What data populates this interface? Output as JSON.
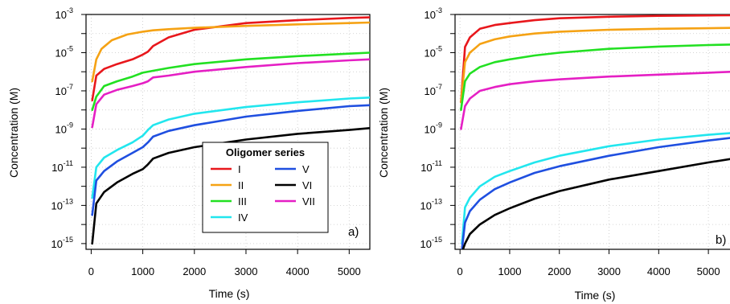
{
  "chart_data": [
    {
      "type": "line",
      "panel_label": "a)",
      "xlabel": "Time (s)",
      "ylabel": "Concentration (M)",
      "xlim": [
        -100,
        5400
      ],
      "ylim_log10": [
        -15.3,
        -3
      ],
      "yscale": "log",
      "xticks": [
        "0",
        "1000",
        "2000",
        "3000",
        "4000",
        "5000"
      ],
      "xtick_values": [
        0,
        1000,
        2000,
        3000,
        4000,
        5000
      ],
      "yticks_exp": [
        "-3",
        "-5",
        "-7",
        "-9",
        "-11",
        "-13",
        "-15"
      ],
      "ytick_values_log10": [
        -3,
        -5,
        -7,
        -9,
        -11,
        -13,
        -15
      ],
      "grid": true,
      "legend": {
        "title": "Oligomer series",
        "placement": "lower-right",
        "entries": [
          {
            "label": "I",
            "color": "#e8171c"
          },
          {
            "label": "V",
            "color": "#1f4fe0"
          },
          {
            "label": "II",
            "color": "#f5a214"
          },
          {
            "label": "VI",
            "color": "#000000"
          },
          {
            "label": "III",
            "color": "#22e022"
          },
          {
            "label": "VII",
            "color": "#e51fc4"
          },
          {
            "label": "IV",
            "color": "#22e6ee"
          }
        ]
      },
      "series": [
        {
          "name": "I",
          "color": "#e8171c",
          "x": [
            20,
            100,
            250,
            500,
            800,
            1000,
            1100,
            1200,
            1500,
            2000,
            3000,
            4000,
            5000,
            5400
          ],
          "log10_y": [
            -7.5,
            -6.2,
            -5.85,
            -5.6,
            -5.35,
            -5.1,
            -4.95,
            -4.65,
            -4.2,
            -3.8,
            -3.45,
            -3.3,
            -3.18,
            -3.15
          ]
        },
        {
          "name": "II",
          "color": "#f5a214",
          "x": [
            20,
            100,
            200,
            400,
            700,
            1000,
            1200,
            1500,
            2000,
            3000,
            4000,
            5000,
            5400
          ],
          "log10_y": [
            -6.5,
            -5.35,
            -4.8,
            -4.35,
            -4.05,
            -3.9,
            -3.83,
            -3.77,
            -3.7,
            -3.6,
            -3.52,
            -3.45,
            -3.42
          ]
        },
        {
          "name": "III",
          "color": "#22e022",
          "x": [
            20,
            100,
            250,
            500,
            800,
            1000,
            1200,
            1500,
            2000,
            3000,
            4000,
            5000,
            5400
          ],
          "log10_y": [
            -8.0,
            -7.3,
            -6.75,
            -6.5,
            -6.25,
            -6.05,
            -5.95,
            -5.8,
            -5.6,
            -5.35,
            -5.18,
            -5.05,
            -5.0
          ]
        },
        {
          "name": "IV",
          "color": "#22e6ee",
          "x": [
            20,
            100,
            250,
            500,
            800,
            1000,
            1100,
            1200,
            1500,
            2000,
            3000,
            4000,
            5000,
            5400
          ],
          "log10_y": [
            -12.6,
            -11.0,
            -10.5,
            -10.1,
            -9.7,
            -9.35,
            -9.05,
            -8.8,
            -8.5,
            -8.2,
            -7.85,
            -7.6,
            -7.4,
            -7.35
          ]
        },
        {
          "name": "V",
          "color": "#1f4fe0",
          "x": [
            20,
            100,
            250,
            500,
            800,
            1000,
            1100,
            1200,
            1500,
            2000,
            3000,
            4000,
            5000,
            5400
          ],
          "log10_y": [
            -13.5,
            -11.7,
            -11.2,
            -10.7,
            -10.25,
            -9.95,
            -9.7,
            -9.4,
            -9.1,
            -8.8,
            -8.35,
            -8.05,
            -7.8,
            -7.75
          ]
        },
        {
          "name": "VI",
          "color": "#000000",
          "x": [
            20,
            100,
            250,
            500,
            800,
            1000,
            1100,
            1200,
            1500,
            2000,
            3000,
            4000,
            5000,
            5400
          ],
          "log10_y": [
            -15.0,
            -12.9,
            -12.3,
            -11.8,
            -11.35,
            -11.1,
            -10.85,
            -10.55,
            -10.25,
            -9.95,
            -9.55,
            -9.25,
            -9.05,
            -8.95
          ]
        },
        {
          "name": "VII",
          "color": "#e51fc4",
          "x": [
            20,
            100,
            250,
            500,
            800,
            1000,
            1100,
            1200,
            1500,
            2000,
            3000,
            4000,
            5000,
            5400
          ],
          "log10_y": [
            -8.9,
            -7.7,
            -7.2,
            -6.95,
            -6.75,
            -6.6,
            -6.5,
            -6.3,
            -6.2,
            -6.0,
            -5.75,
            -5.55,
            -5.4,
            -5.35
          ]
        }
      ]
    },
    {
      "type": "line",
      "panel_label": "b)",
      "xlabel": "Time (s)",
      "ylabel": "Concentration (M)",
      "xlim": [
        -100,
        5500
      ],
      "ylim_log10": [
        -15.3,
        -3
      ],
      "yscale": "log",
      "xticks": [
        "0",
        "1000",
        "2000",
        "3000",
        "4000",
        "5000"
      ],
      "xtick_values": [
        0,
        1000,
        2000,
        3000,
        4000,
        5000
      ],
      "yticks_exp": [
        "-3",
        "-5",
        "-7",
        "-9",
        "-11",
        "-13",
        "-15"
      ],
      "ytick_values_log10": [
        -3,
        -5,
        -7,
        -9,
        -11,
        -13,
        -15
      ],
      "grid": true,
      "series": [
        {
          "name": "I",
          "color": "#e8171c",
          "x": [
            20,
            100,
            200,
            400,
            700,
            1000,
            1500,
            2000,
            3000,
            4000,
            5000,
            5500
          ],
          "log10_y": [
            -7.6,
            -4.7,
            -4.2,
            -3.75,
            -3.55,
            -3.45,
            -3.3,
            -3.2,
            -3.12,
            -3.07,
            -3.05,
            -3.04
          ]
        },
        {
          "name": "II",
          "color": "#f5a214",
          "x": [
            20,
            100,
            200,
            400,
            700,
            1000,
            1500,
            2000,
            3000,
            4000,
            5000,
            5500
          ],
          "log10_y": [
            -7.6,
            -5.5,
            -5.0,
            -4.55,
            -4.3,
            -4.15,
            -4.0,
            -3.9,
            -3.8,
            -3.75,
            -3.72,
            -3.7
          ]
        },
        {
          "name": "III",
          "color": "#22e022",
          "x": [
            20,
            100,
            200,
            400,
            700,
            1000,
            1500,
            2000,
            3000,
            4000,
            5000,
            5500
          ],
          "log10_y": [
            -8.0,
            -6.5,
            -6.1,
            -5.75,
            -5.5,
            -5.35,
            -5.15,
            -5.0,
            -4.8,
            -4.68,
            -4.6,
            -4.57
          ]
        },
        {
          "name": "IV",
          "color": "#22e6ee",
          "x": [
            40,
            100,
            200,
            400,
            700,
            1000,
            1500,
            2000,
            3000,
            4000,
            5000,
            5500
          ],
          "log10_y": [
            -15.0,
            -13.1,
            -12.6,
            -12.0,
            -11.5,
            -11.2,
            -10.75,
            -10.4,
            -9.9,
            -9.55,
            -9.3,
            -9.2
          ]
        },
        {
          "name": "V",
          "color": "#1f4fe0",
          "x": [
            40,
            100,
            200,
            400,
            700,
            1000,
            1500,
            2000,
            3000,
            4000,
            5000,
            5500
          ],
          "log10_y": [
            -15.3,
            -13.9,
            -13.3,
            -12.7,
            -12.15,
            -11.8,
            -11.3,
            -10.95,
            -10.4,
            -9.95,
            -9.6,
            -9.45
          ]
        },
        {
          "name": "VI",
          "color": "#000000",
          "x": [
            60,
            100,
            200,
            400,
            700,
            1000,
            1500,
            2000,
            3000,
            4000,
            5000,
            5500
          ],
          "log10_y": [
            -15.3,
            -15.0,
            -14.5,
            -14.0,
            -13.5,
            -13.15,
            -12.65,
            -12.25,
            -11.65,
            -11.2,
            -10.75,
            -10.55
          ]
        },
        {
          "name": "VII",
          "color": "#e51fc4",
          "x": [
            20,
            100,
            200,
            400,
            700,
            1000,
            1500,
            2000,
            3000,
            4000,
            5000,
            5500
          ],
          "log10_y": [
            -9.0,
            -7.8,
            -7.4,
            -7.0,
            -6.8,
            -6.65,
            -6.5,
            -6.4,
            -6.25,
            -6.15,
            -6.05,
            -6.0
          ]
        }
      ]
    }
  ]
}
